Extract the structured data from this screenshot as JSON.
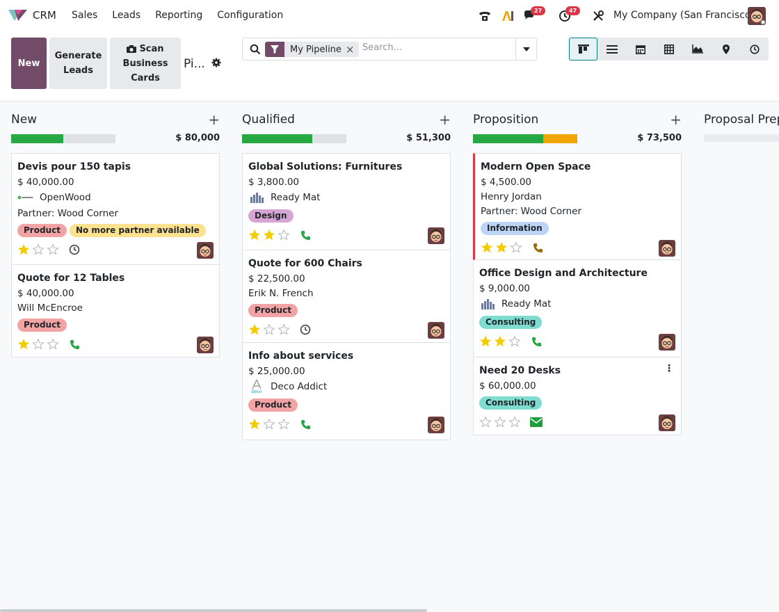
{
  "navbar": {
    "app_name": "CRM",
    "menu": [
      "Sales",
      "Leads",
      "Reporting",
      "Configuration"
    ],
    "messages_badge": "27",
    "activities_badge": "47",
    "company": "My Company (San Francisco)"
  },
  "control_panel": {
    "new_label": "New",
    "generate_leads": [
      "Generate",
      "Leads"
    ],
    "scan_cards": [
      "Scan",
      "Business",
      "Cards"
    ],
    "title": "Pi...",
    "search": {
      "facet": "My Pipeline",
      "placeholder": "Search..."
    }
  },
  "colors": {
    "primary": "#714b67",
    "teal": "#017e84",
    "green": "#28a745",
    "orange": "#f0a500",
    "red": "#dc3545"
  },
  "columns": [
    {
      "title": "New",
      "total": "$ 80,000",
      "progress": [
        {
          "color": "green",
          "fraction": 0.5
        }
      ],
      "cards": [
        {
          "name": "Devis pour 150 tapis",
          "amount": "$ 40,000.00",
          "company": "OpenWood",
          "partner": "Partner: Wood Corner",
          "tags": [
            {
              "label": "Product",
              "color": "red"
            },
            {
              "label": "No more partner available",
              "color": "yellow"
            }
          ],
          "stars": 1,
          "activity": "clock-icon"
        },
        {
          "name": "Quote for 12 Tables",
          "amount": "$ 40,000.00",
          "contact": "Will McEncroe",
          "tags": [
            {
              "label": "Product",
              "color": "red"
            }
          ],
          "stars": 1,
          "activity": "phone-icon"
        }
      ]
    },
    {
      "title": "Qualified",
      "total": "$ 51,300",
      "progress": [
        {
          "color": "green",
          "fraction": 0.67
        }
      ],
      "cards": [
        {
          "name": "Global Solutions: Furnitures",
          "amount": "$ 3,800.00",
          "company": "Ready Mat",
          "tags": [
            {
              "label": "Design",
              "color": "purple"
            }
          ],
          "stars": 2,
          "activity": "phone-icon"
        },
        {
          "name": "Quote for 600 Chairs",
          "amount": "$ 22,500.00",
          "contact": "Erik N. French",
          "tags": [
            {
              "label": "Product",
              "color": "red"
            }
          ],
          "stars": 1,
          "activity": "clock-icon"
        },
        {
          "name": "Info about services",
          "amount": "$ 25,000.00",
          "company": "Deco Addict",
          "tags": [
            {
              "label": "Product",
              "color": "red"
            }
          ],
          "stars": 1,
          "activity": "phone-icon"
        }
      ]
    },
    {
      "title": "Proposition",
      "total": "$ 73,500",
      "progress": [
        {
          "color": "green",
          "fraction": 0.67
        },
        {
          "color": "orange",
          "fraction": 0.33
        }
      ],
      "cards": [
        {
          "name": "Modern Open Space",
          "amount": "$ 4,500.00",
          "contact": "Henry Jordan",
          "partner": "Partner: Wood Corner",
          "tags": [
            {
              "label": "Information",
              "color": "blue"
            }
          ],
          "stars": 2,
          "activity": "phone-warning-icon"
        },
        {
          "name": "Office Design and Architecture",
          "amount": "$ 9,000.00",
          "company": "Ready Mat",
          "tags": [
            {
              "label": "Consulting",
              "color": "teal"
            }
          ],
          "stars": 2,
          "activity": "phone-icon"
        },
        {
          "name": "Need 20 Desks",
          "amount": "$ 60,000.00",
          "tags": [
            {
              "label": "Consulting",
              "color": "teal"
            }
          ],
          "stars": 0,
          "activity": "envelope-icon"
        }
      ]
    },
    {
      "title": "Proposal Prep",
      "total": "",
      "progress": [],
      "cards": []
    }
  ]
}
